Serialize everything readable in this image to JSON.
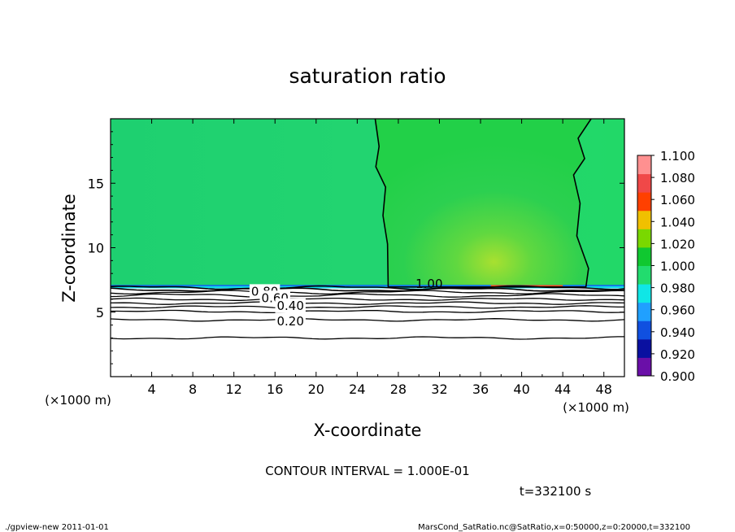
{
  "chart_data": {
    "type": "heatmap",
    "title": "saturation ratio",
    "xlabel": "X-coordinate",
    "ylabel": "Z-coordinate",
    "x_unit": "(×1000 m)",
    "z_unit": "(×1000 m)",
    "xlim": [
      0,
      50
    ],
    "ylim": [
      0,
      20
    ],
    "xticks": [
      "4",
      "8",
      "12",
      "16",
      "20",
      "24",
      "28",
      "32",
      "36",
      "40",
      "44",
      "48"
    ],
    "yticks": [
      "5",
      "10",
      "15"
    ],
    "colorbar": {
      "levels": [
        "0.900",
        "0.920",
        "0.940",
        "0.960",
        "0.980",
        "1.000",
        "1.020",
        "1.040",
        "1.060",
        "1.080",
        "1.100"
      ],
      "colors": [
        "#6a0fa8",
        "#0a10a0",
        "#1050e0",
        "#20a0ff",
        "#10e6e6",
        "#22dc6e",
        "#10c830",
        "#7ad800",
        "#f0c000",
        "#ff4000",
        "#f04848",
        "#ff9090"
      ]
    },
    "contour_labels": [
      {
        "text": "1.00",
        "x": 31,
        "z": 7.2
      },
      {
        "text": "0.80",
        "x": 15,
        "z": 6.6
      },
      {
        "text": "0.60",
        "x": 16,
        "z": 6.1
      },
      {
        "text": "0.40",
        "x": 17.5,
        "z": 5.5
      },
      {
        "text": "0.20",
        "x": 17.5,
        "z": 4.3
      }
    ],
    "contour_lines_z": [
      6.9,
      6.75,
      6.55,
      6.3,
      6.0,
      5.7,
      5.4,
      5.05,
      4.4,
      3.0
    ],
    "supersaturated_region": {
      "x_from": 26,
      "x_to": 46
    },
    "contour_interval": "CONTOUR INTERVAL = 1.000E-01",
    "time_label": "t=332100 s"
  },
  "footer": {
    "left": "./gpview-new  2011-01-01",
    "right": "MarsCond_SatRatio.nc@SatRatio,x=0:50000,z=0:20000,t=332100"
  }
}
